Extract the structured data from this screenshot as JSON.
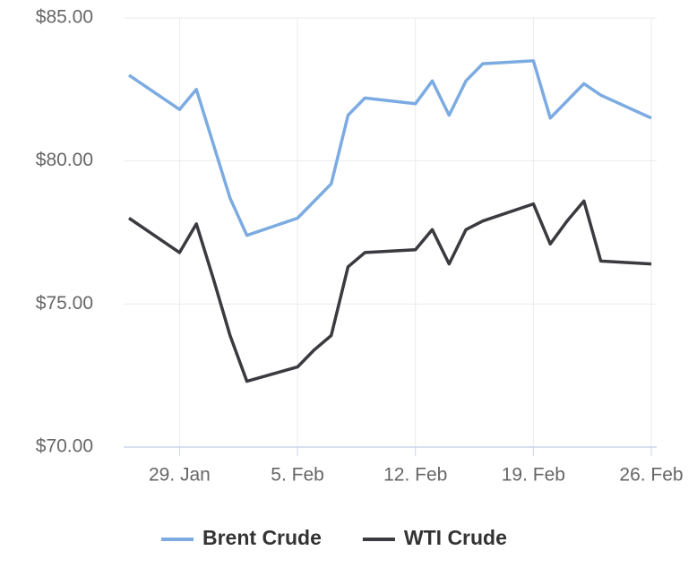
{
  "chart_data": {
    "type": "line",
    "x": [
      "01-26",
      "01-29",
      "01-30",
      "01-31",
      "02-01",
      "02-02",
      "02-05",
      "02-06",
      "02-07",
      "02-08",
      "02-09",
      "02-12",
      "02-13",
      "02-14",
      "02-15",
      "02-16",
      "02-19",
      "02-20",
      "02-21",
      "02-22",
      "02-23",
      "02-26"
    ],
    "series": [
      {
        "name": "Brent Crude",
        "color": "#7cabe2",
        "values": [
          83.0,
          81.8,
          82.5,
          80.6,
          78.7,
          77.4,
          78.0,
          78.6,
          79.2,
          81.6,
          82.2,
          82.0,
          82.8,
          81.6,
          82.8,
          83.4,
          83.5,
          81.5,
          82.1,
          82.7,
          82.3,
          81.5
        ]
      },
      {
        "name": "WTI Crude",
        "color": "#3a3a3f",
        "values": [
          78.0,
          76.8,
          77.8,
          75.9,
          73.9,
          72.3,
          72.8,
          73.4,
          73.9,
          76.3,
          76.8,
          76.9,
          77.6,
          76.4,
          77.6,
          77.9,
          78.5,
          77.1,
          77.9,
          78.6,
          76.5,
          76.4
        ]
      }
    ],
    "xlim": [
      "01-26",
      "02-26"
    ],
    "xticks": [
      {
        "value": "01-29",
        "label": "29. Jan"
      },
      {
        "value": "02-05",
        "label": "5. Feb"
      },
      {
        "value": "02-12",
        "label": "12. Feb"
      },
      {
        "value": "02-19",
        "label": "19. Feb"
      },
      {
        "value": "02-26",
        "label": "26. Feb"
      }
    ],
    "ylim": [
      70,
      85
    ],
    "yticks": [
      {
        "value": 70,
        "label": "$70.00"
      },
      {
        "value": 75,
        "label": "$75.00"
      },
      {
        "value": 80,
        "label": "$80.00"
      },
      {
        "value": 85,
        "label": "$85.00"
      }
    ],
    "grid": true
  }
}
